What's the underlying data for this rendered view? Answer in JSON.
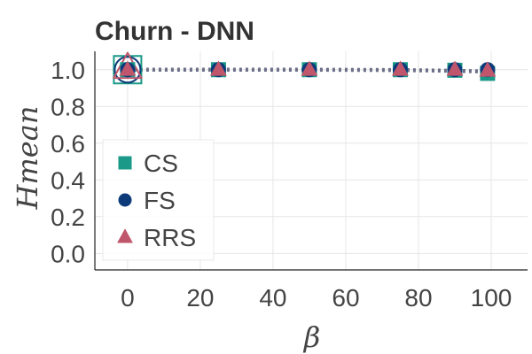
{
  "chart_data": {
    "type": "line",
    "title": "Churn - DNN",
    "xlabel": "β",
    "ylabel": "Hmean",
    "xlim": [
      -9,
      110
    ],
    "ylim": [
      -0.09,
      1.1
    ],
    "xticks": [
      0,
      20,
      40,
      60,
      80,
      100
    ],
    "yticks": [
      0.0,
      0.2,
      0.4,
      0.6,
      0.8,
      1.0
    ],
    "ytick_labels": [
      "0.0",
      "0.2",
      "0.4",
      "0.6",
      "0.8",
      "1.0"
    ],
    "grid": true,
    "legend_position": "center-left",
    "x": [
      0,
      25,
      50,
      75,
      90,
      99
    ],
    "series": [
      {
        "name": "CS",
        "color": "#1a9988",
        "marker": "square",
        "values": [
          1.0,
          1.0,
          1.0,
          1.0,
          0.997,
          0.98
        ]
      },
      {
        "name": "FS",
        "color": "#0d3b7a",
        "marker": "circle",
        "values": [
          1.0,
          1.0,
          1.0,
          1.0,
          1.0,
          1.0
        ]
      },
      {
        "name": "RRS",
        "color": "#c0566b",
        "marker": "triangle",
        "values": [
          1.0,
          1.0,
          1.0,
          1.0,
          1.0,
          0.995
        ]
      }
    ],
    "trend_line": {
      "color": "#6b6e86",
      "style": "dotted",
      "values": [
        1.0,
        1.0,
        1.0,
        0.998,
        0.994,
        0.99
      ]
    },
    "highlight_point": {
      "x": 0,
      "y": 1.0
    }
  }
}
